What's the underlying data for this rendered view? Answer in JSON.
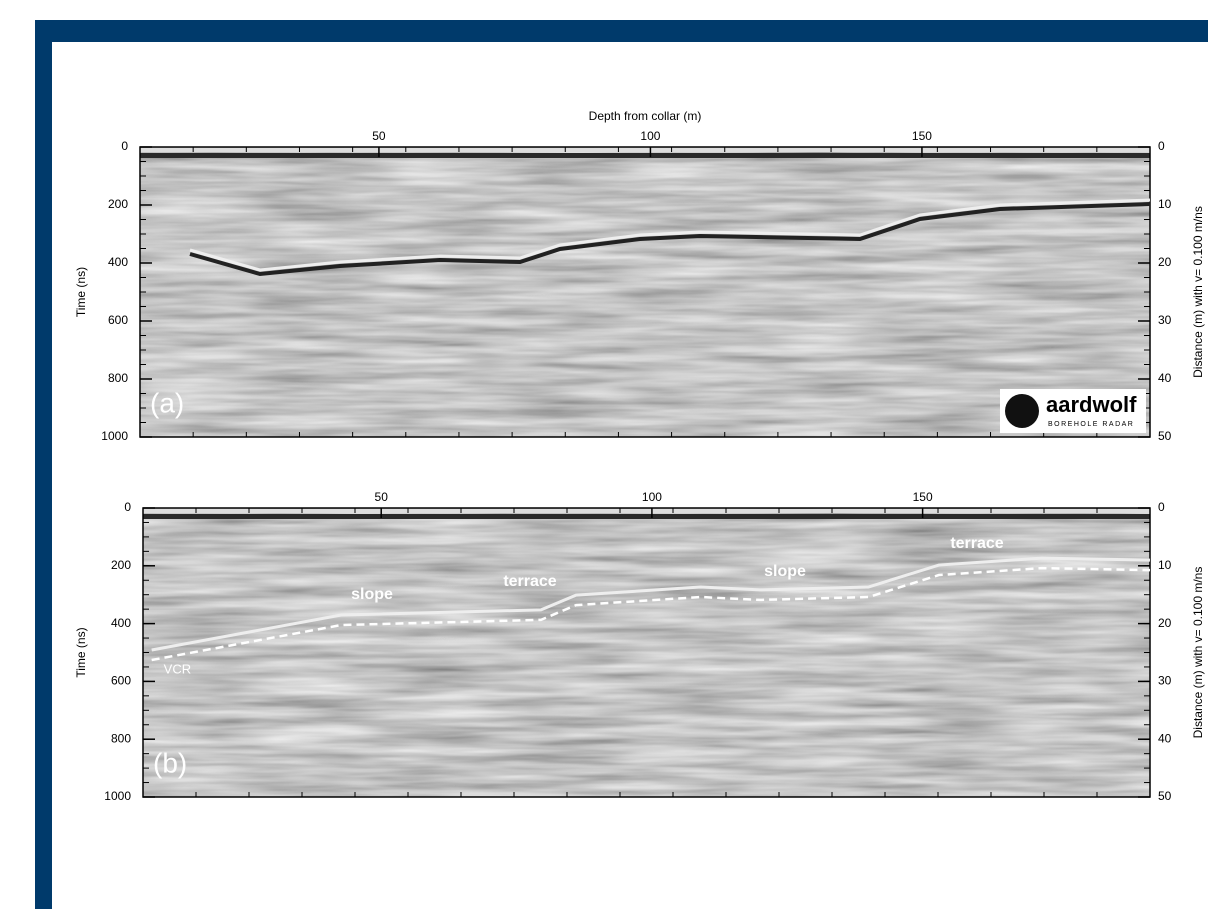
{
  "chart_data": [
    {
      "type": "radargram",
      "panel_label": "(a)",
      "title": "Depth from collar (m)",
      "y_label": "Time (ns)",
      "y2_label": "Distance (m) with v= 0.100 m/ns",
      "xlim": [
        6,
        192
      ],
      "xticks": [
        50,
        100,
        150
      ],
      "ylim": [
        0,
        1000
      ],
      "yticks": [
        0,
        200,
        400,
        600,
        800,
        1000
      ],
      "y_inverted": true,
      "y2lim": [
        0,
        50
      ],
      "y2ticks": [
        0,
        10,
        20,
        30,
        40,
        50
      ],
      "logo": {
        "name": "aardwolf",
        "tagline": "BOREHOLE RADAR"
      }
    },
    {
      "type": "radargram",
      "panel_label": "(b)",
      "y_label": "Time (ns)",
      "y2_label": "Distance (m) with v= 0.100 m/ns",
      "xlim": [
        6,
        192
      ],
      "xticks": [
        50,
        100,
        150
      ],
      "ylim": [
        0,
        1000
      ],
      "yticks": [
        0,
        200,
        400,
        600,
        800,
        1000
      ],
      "y_inverted": true,
      "y2lim": [
        0,
        50
      ],
      "y2ticks": [
        0,
        10,
        20,
        30,
        40,
        50
      ],
      "series": [
        {
          "name": "VCR",
          "color": "#ffffff",
          "x": [
            7.6,
            42.6,
            79.5,
            86,
            109,
            120,
            140,
            153,
            172,
            192
          ],
          "values": [
            526,
            405,
            387,
            336,
            308,
            318,
            308,
            232,
            208,
            215
          ]
        }
      ],
      "annotations": [
        "slope",
        "terrace",
        "slope",
        "terrace"
      ]
    }
  ]
}
